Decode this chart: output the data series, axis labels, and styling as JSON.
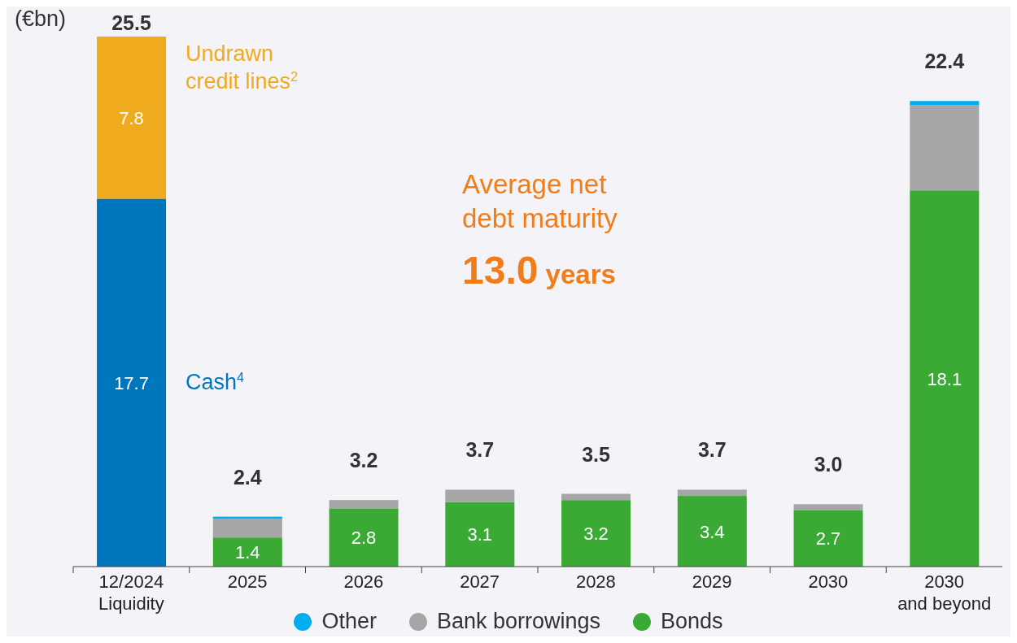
{
  "chart_data": {
    "type": "bar",
    "stacked": true,
    "ylabel": "(€bn)",
    "categories": [
      "12/2024\nLiquidity",
      "2025",
      "2026",
      "2027",
      "2028",
      "2029",
      "2030",
      "2030\nand beyond"
    ],
    "series": [
      {
        "name": "Cash$^{4}$",
        "color": "#0077bd",
        "values": [
          17.7,
          null,
          null,
          null,
          null,
          null,
          null,
          null
        ],
        "value_labels": [
          "17.7",
          null,
          null,
          null,
          null,
          null,
          null,
          null
        ]
      },
      {
        "name": "Undrawn credit lines$^{2}$",
        "color": "#efaa1e",
        "values": [
          7.8,
          null,
          null,
          null,
          null,
          null,
          null,
          null
        ],
        "value_labels": [
          "7.8",
          null,
          null,
          null,
          null,
          null,
          null,
          null
        ]
      },
      {
        "name": "Bonds",
        "color": "#3aaa35",
        "values": [
          null,
          1.4,
          2.8,
          3.1,
          3.2,
          3.4,
          2.7,
          18.1
        ],
        "value_labels": [
          null,
          "1.4",
          "2.8",
          "3.1",
          "3.2",
          "3.4",
          "2.7",
          "18.1"
        ]
      },
      {
        "name": "Bank borrowings",
        "color": "#a6a6a6",
        "values": [
          null,
          0.9,
          0.4,
          0.6,
          0.3,
          0.3,
          0.3,
          4.1
        ]
      },
      {
        "name": "Other",
        "color": "#00aeef",
        "values": [
          null,
          0.1,
          null,
          null,
          null,
          null,
          null,
          0.2
        ]
      }
    ],
    "totals": [
      "25.5",
      "2.4",
      "3.2",
      "3.7",
      "3.5",
      "3.7",
      "3.0",
      "22.4"
    ],
    "ylim": [
      0,
      25.5
    ],
    "legend": "bottom",
    "annotations": [
      "Average net debt maturity",
      "13.0 years"
    ]
  }
}
